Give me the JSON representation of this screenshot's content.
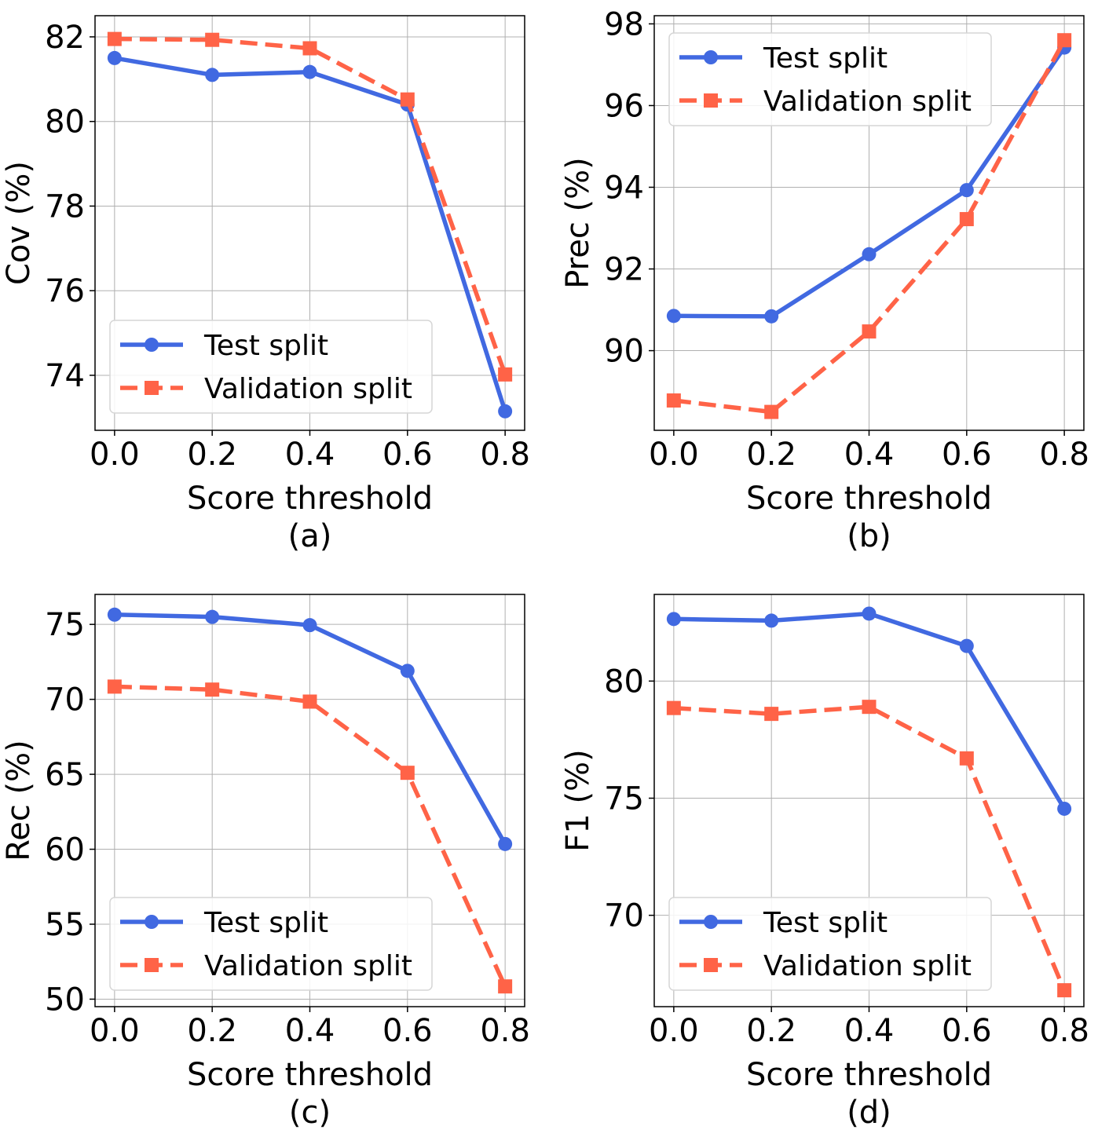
{
  "colors": {
    "test": "#4169e1",
    "validation": "#ff6347"
  },
  "chart_data": [
    {
      "type": "line",
      "panel_label": "(a)",
      "title": "",
      "xlabel": "Score threshold",
      "ylabel": "Cov (%)",
      "x": [
        0.0,
        0.2,
        0.4,
        0.6,
        0.8
      ],
      "xticks": [
        "0.0",
        "0.2",
        "0.4",
        "0.6",
        "0.8"
      ],
      "xlim": [
        -0.04,
        0.84
      ],
      "yticks": [
        "74",
        "76",
        "78",
        "80",
        "82"
      ],
      "ylim": [
        72.7,
        82.5
      ],
      "grid": true,
      "legend": "bottom-left",
      "series": [
        {
          "name": "Test split",
          "marker": "circle",
          "values": [
            81.5,
            81.1,
            81.17,
            80.4,
            73.15
          ]
        },
        {
          "name": "Validation split",
          "marker": "square",
          "values": [
            81.95,
            81.93,
            81.73,
            80.52,
            74.02
          ]
        }
      ]
    },
    {
      "type": "line",
      "panel_label": "(b)",
      "title": "",
      "xlabel": "Score threshold",
      "ylabel": "Prec (%)",
      "x": [
        0.0,
        0.2,
        0.4,
        0.6,
        0.8
      ],
      "xticks": [
        "0.0",
        "0.2",
        "0.4",
        "0.6",
        "0.8"
      ],
      "xlim": [
        -0.04,
        0.84
      ],
      "yticks": [
        "90",
        "92",
        "94",
        "96",
        "98"
      ],
      "ylim": [
        88.05,
        98.2
      ],
      "grid": true,
      "legend": "top-left",
      "series": [
        {
          "name": "Test split",
          "marker": "circle",
          "values": [
            90.85,
            90.84,
            92.36,
            93.93,
            97.42
          ]
        },
        {
          "name": "Validation split",
          "marker": "square",
          "values": [
            88.78,
            88.5,
            90.47,
            93.22,
            97.6
          ]
        }
      ]
    },
    {
      "type": "line",
      "panel_label": "(c)",
      "title": "",
      "xlabel": "Score threshold",
      "ylabel": "Rec (%)",
      "x": [
        0.0,
        0.2,
        0.4,
        0.6,
        0.8
      ],
      "xticks": [
        "0.0",
        "0.2",
        "0.4",
        "0.6",
        "0.8"
      ],
      "xlim": [
        -0.04,
        0.84
      ],
      "yticks": [
        "50",
        "55",
        "60",
        "65",
        "70",
        "75"
      ],
      "ylim": [
        49.5,
        77.0
      ],
      "grid": true,
      "legend": "bottom-left",
      "series": [
        {
          "name": "Test split",
          "marker": "circle",
          "values": [
            75.65,
            75.5,
            74.95,
            71.9,
            60.35
          ]
        },
        {
          "name": "Validation split",
          "marker": "square",
          "values": [
            70.85,
            70.65,
            69.85,
            65.1,
            50.85
          ]
        }
      ]
    },
    {
      "type": "line",
      "panel_label": "(d)",
      "title": "",
      "xlabel": "Score threshold",
      "ylabel": "F1 (%)",
      "x": [
        0.0,
        0.2,
        0.4,
        0.6,
        0.8
      ],
      "xticks": [
        "0.0",
        "0.2",
        "0.4",
        "0.6",
        "0.8"
      ],
      "xlim": [
        -0.04,
        0.84
      ],
      "yticks": [
        "70",
        "75",
        "80"
      ],
      "ylim": [
        66.1,
        83.7
      ],
      "grid": true,
      "legend": "bottom-left",
      "series": [
        {
          "name": "Test split",
          "marker": "circle",
          "values": [
            82.65,
            82.58,
            82.88,
            81.5,
            74.55
          ]
        },
        {
          "name": "Validation split",
          "marker": "square",
          "values": [
            78.85,
            78.6,
            78.9,
            76.7,
            66.8
          ]
        }
      ]
    }
  ]
}
